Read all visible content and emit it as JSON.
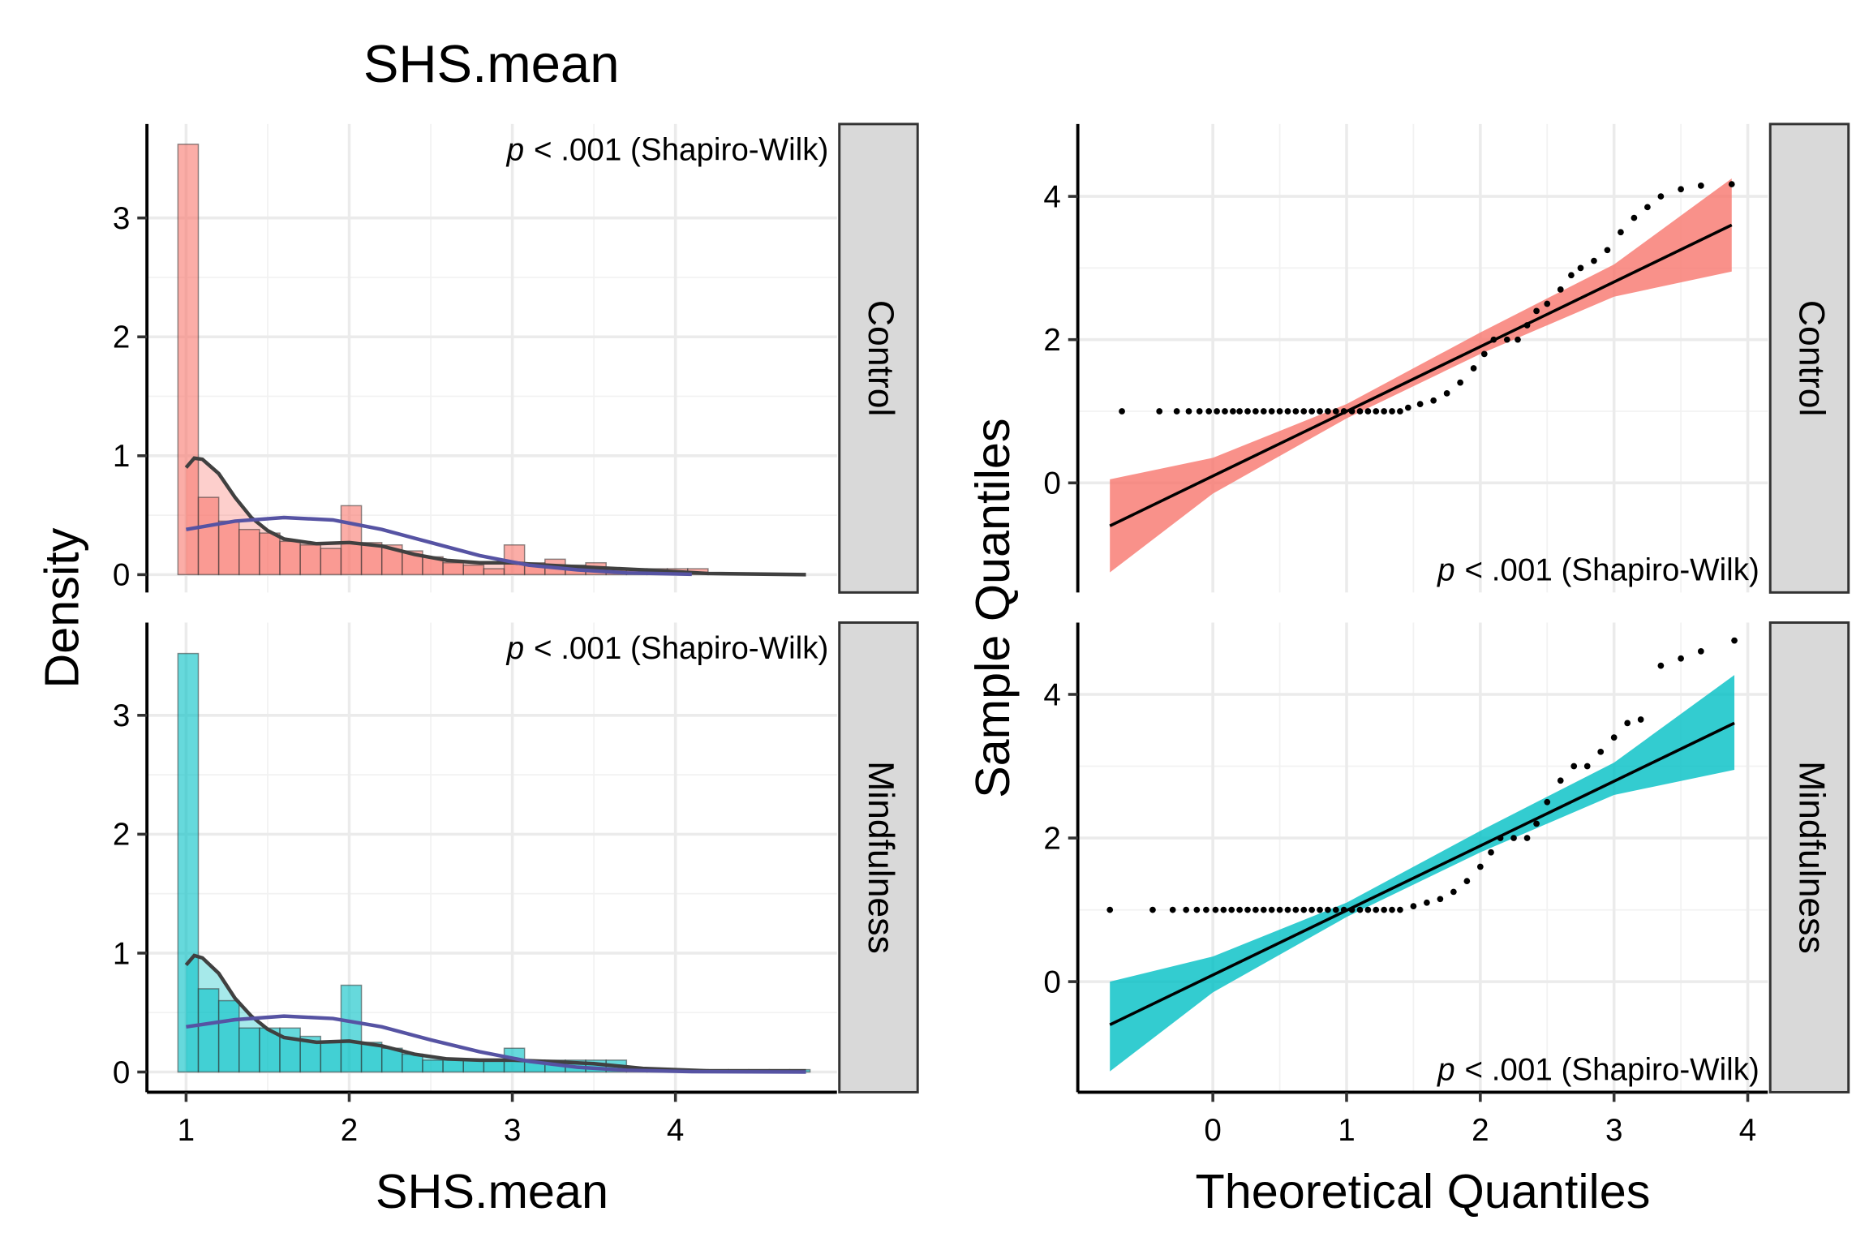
{
  "chart_data": [
    {
      "type": "histogram",
      "title": "SHS.mean",
      "ylabel": "Density",
      "strip": "Control",
      "annotation": [
        "p",
        "< .001 (Shapiro-Wilk)"
      ],
      "color": "#f8766d",
      "density_color": "#404040",
      "normal_color": "#5653a3",
      "bins": [
        0.95,
        1.075,
        1.2,
        1.325,
        1.45,
        1.575,
        1.7,
        1.825,
        1.95,
        2.075,
        2.2,
        2.325,
        2.45,
        2.575,
        2.7,
        2.825,
        2.95,
        3.075,
        3.2,
        3.325,
        3.45,
        3.575,
        3.7,
        3.825,
        3.95,
        4.075,
        4.2
      ],
      "counts": [
        3.62,
        0.65,
        0.45,
        0.38,
        0.35,
        0.28,
        0.25,
        0.22,
        0.58,
        0.27,
        0.25,
        0.2,
        0.15,
        0.1,
        0.08,
        0.05,
        0.25,
        0.1,
        0.13,
        0.08,
        0.1,
        0.05,
        0.05,
        0.05,
        0.05,
        0.05
      ],
      "density": {
        "x": [
          1,
          1.05,
          1.1,
          1.2,
          1.3,
          1.4,
          1.5,
          1.6,
          1.8,
          2.0,
          2.2,
          2.4,
          2.6,
          2.8,
          3.0,
          3.2,
          3.5,
          3.8,
          4.2,
          4.8
        ],
        "y": [
          0.9,
          0.98,
          0.97,
          0.85,
          0.65,
          0.48,
          0.37,
          0.3,
          0.26,
          0.27,
          0.24,
          0.17,
          0.12,
          0.1,
          0.1,
          0.08,
          0.06,
          0.04,
          0.01,
          0.0
        ]
      },
      "normal": {
        "x": [
          1,
          1.3,
          1.6,
          1.9,
          2.2,
          2.5,
          2.8,
          3.1,
          3.4,
          3.7,
          4.1
        ],
        "y": [
          0.38,
          0.45,
          0.48,
          0.46,
          0.38,
          0.27,
          0.16,
          0.08,
          0.04,
          0.015,
          0.003
        ]
      },
      "xlim": [
        0.76,
        4.99
      ],
      "ylim": [
        -0.15,
        3.79
      ],
      "xticks": [
        1,
        2,
        3,
        4
      ],
      "yticks": [
        0,
        1,
        2,
        3
      ],
      "grid": true
    },
    {
      "type": "histogram",
      "xlabel": "SHS.mean",
      "strip": "Mindfulness",
      "annotation": [
        "p",
        "< .001 (Shapiro-Wilk)"
      ],
      "color": "#00bfc4",
      "density_color": "#404040",
      "normal_color": "#5653a3",
      "bins": [
        0.95,
        1.075,
        1.2,
        1.325,
        1.45,
        1.575,
        1.7,
        1.825,
        1.95,
        2.075,
        2.2,
        2.325,
        2.45,
        2.575,
        2.7,
        2.825,
        2.95,
        3.075,
        3.2,
        3.325,
        3.45,
        3.575,
        3.7,
        3.825,
        3.95,
        4.075,
        4.2,
        4.325,
        4.45,
        4.575,
        4.7,
        4.825
      ],
      "counts": [
        3.52,
        0.7,
        0.6,
        0.37,
        0.37,
        0.37,
        0.3,
        0.25,
        0.73,
        0.25,
        0.2,
        0.15,
        0.1,
        0.1,
        0.1,
        0.1,
        0.2,
        0.1,
        0.1,
        0.1,
        0.1,
        0.1,
        0.02,
        0.02,
        0.02,
        0.02,
        0.02,
        0.02,
        0.02,
        0.02,
        0.02
      ],
      "density": {
        "x": [
          1,
          1.05,
          1.1,
          1.2,
          1.3,
          1.4,
          1.5,
          1.6,
          1.8,
          2.0,
          2.2,
          2.4,
          2.6,
          2.8,
          3.0,
          3.2,
          3.5,
          3.8,
          4.2,
          4.8
        ],
        "y": [
          0.9,
          0.98,
          0.96,
          0.83,
          0.62,
          0.47,
          0.36,
          0.29,
          0.25,
          0.26,
          0.22,
          0.15,
          0.11,
          0.1,
          0.1,
          0.09,
          0.07,
          0.03,
          0.01,
          0.01
        ]
      },
      "normal": {
        "x": [
          1,
          1.3,
          1.6,
          1.9,
          2.2,
          2.5,
          2.8,
          3.1,
          3.4,
          3.7,
          4.1,
          4.8
        ],
        "y": [
          0.38,
          0.44,
          0.47,
          0.45,
          0.38,
          0.27,
          0.17,
          0.09,
          0.04,
          0.015,
          0.003,
          0.0
        ]
      },
      "xlim": [
        0.76,
        4.99
      ],
      "ylim": [
        -0.17,
        3.78
      ],
      "xticks": [
        1,
        2,
        3,
        4
      ],
      "yticks": [
        0,
        1,
        2,
        3
      ],
      "grid": true
    },
    {
      "type": "qq",
      "strip": "Control",
      "annotation": [
        "p",
        "< .001 (Shapiro-Wilk)"
      ],
      "color": "#f8766d",
      "x": [
        -0.68,
        -0.4,
        -0.27,
        -0.18,
        -0.1,
        -0.03,
        0.03,
        0.09,
        0.15,
        0.2,
        0.26,
        0.32,
        0.38,
        0.44,
        0.5,
        0.56,
        0.62,
        0.68,
        0.74,
        0.8,
        0.86,
        0.92,
        0.98,
        1.04,
        1.1,
        1.16,
        1.22,
        1.28,
        1.34,
        1.4,
        1.46,
        1.55,
        1.65,
        1.75,
        1.85,
        1.95,
        2.03,
        2.1,
        2.2,
        2.28,
        2.35,
        2.42,
        2.5,
        2.6,
        2.68,
        2.75,
        2.85,
        2.95,
        3.05,
        3.15,
        3.25,
        3.35,
        3.5,
        3.65,
        3.88
      ],
      "y": [
        1,
        1,
        1,
        1,
        1,
        1,
        1,
        1,
        1,
        1,
        1,
        1,
        1,
        1,
        1,
        1,
        1,
        1,
        1,
        1,
        1,
        1,
        1,
        1,
        1,
        1,
        1,
        1,
        1,
        1,
        1.05,
        1.1,
        1.15,
        1.25,
        1.4,
        1.6,
        1.8,
        2,
        2,
        2,
        2.2,
        2.4,
        2.5,
        2.7,
        2.9,
        3.0,
        3.1,
        3.25,
        3.5,
        3.7,
        3.85,
        4.0,
        4.1,
        4.15,
        4.17
      ],
      "line": {
        "x": [
          -0.77,
          3.88
        ],
        "y": [
          -0.6,
          3.6
        ]
      },
      "band": {
        "x": [
          -0.77,
          0,
          1,
          2,
          3,
          3.88
        ],
        "lower": [
          -1.25,
          -0.15,
          0.9,
          1.8,
          2.6,
          2.95
        ],
        "upper": [
          0.05,
          0.35,
          1.1,
          2.1,
          3.05,
          4.25
        ]
      },
      "xlim": [
        -1.01,
        4.15
      ],
      "ylim": [
        -1.53,
        5.01
      ],
      "xticks": [
        0,
        1,
        2,
        3,
        4
      ],
      "yticks": [
        0,
        2,
        4
      ],
      "grid": true
    },
    {
      "type": "qq",
      "ylabel": "Sample Quantiles",
      "xlabel": "Theoretical Quantiles",
      "strip": "Mindfulness",
      "annotation": [
        "p",
        "< .001 (Shapiro-Wilk)"
      ],
      "color": "#00bfc4",
      "x": [
        -0.77,
        -0.45,
        -0.3,
        -0.2,
        -0.12,
        -0.05,
        0.02,
        0.08,
        0.14,
        0.2,
        0.26,
        0.32,
        0.38,
        0.44,
        0.5,
        0.56,
        0.62,
        0.68,
        0.74,
        0.8,
        0.86,
        0.92,
        0.98,
        1.04,
        1.1,
        1.16,
        1.22,
        1.28,
        1.34,
        1.4,
        1.5,
        1.6,
        1.7,
        1.8,
        1.9,
        2.0,
        2.08,
        2.15,
        2.25,
        2.35,
        2.42,
        2.5,
        2.6,
        2.7,
        2.8,
        2.9,
        3.0,
        3.1,
        3.2,
        3.35,
        3.5,
        3.65,
        3.9
      ],
      "y": [
        1,
        1,
        1,
        1,
        1,
        1,
        1,
        1,
        1,
        1,
        1,
        1,
        1,
        1,
        1,
        1,
        1,
        1,
        1,
        1,
        1,
        1,
        1,
        1,
        1,
        1,
        1,
        1,
        1,
        1,
        1.05,
        1.1,
        1.15,
        1.25,
        1.4,
        1.6,
        1.8,
        2,
        2,
        2,
        2.2,
        2.5,
        2.8,
        3.0,
        3.0,
        3.2,
        3.4,
        3.6,
        3.65,
        4.4,
        4.5,
        4.6,
        4.75
      ],
      "line": {
        "x": [
          -0.77,
          3.9
        ],
        "y": [
          -0.6,
          3.6
        ]
      },
      "band": {
        "x": [
          -0.77,
          0,
          1,
          2,
          3,
          3.9
        ],
        "lower": [
          -1.25,
          -0.15,
          0.9,
          1.8,
          2.6,
          2.95
        ],
        "upper": [
          0.0,
          0.35,
          1.1,
          2.1,
          3.05,
          4.27
        ]
      },
      "xlim": [
        -1.01,
        4.15
      ],
      "ylim": [
        -1.54,
        5.0
      ],
      "xticks": [
        0,
        1,
        2,
        3,
        4
      ],
      "yticks": [
        0,
        2,
        4
      ],
      "grid": true
    }
  ]
}
